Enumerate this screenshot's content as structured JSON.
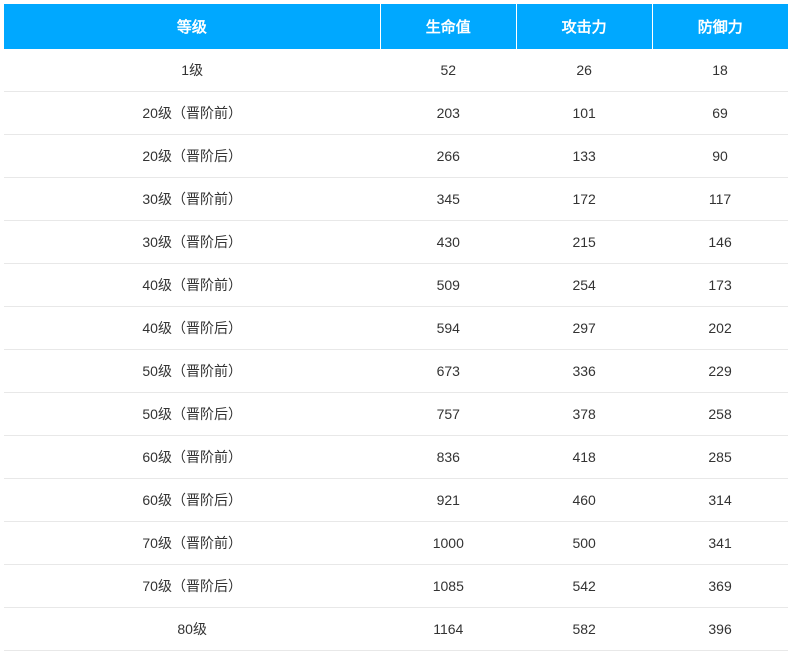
{
  "table": {
    "headers": {
      "level": "等级",
      "hp": "生命值",
      "atk": "攻击力",
      "def": "防御力"
    },
    "rows": [
      {
        "level": "1级",
        "hp": "52",
        "atk": "26",
        "def": "18"
      },
      {
        "level": "20级（晋阶前）",
        "hp": "203",
        "atk": "101",
        "def": "69"
      },
      {
        "level": "20级（晋阶后）",
        "hp": "266",
        "atk": "133",
        "def": "90"
      },
      {
        "level": "30级（晋阶前）",
        "hp": "345",
        "atk": "172",
        "def": "117"
      },
      {
        "level": "30级（晋阶后）",
        "hp": "430",
        "atk": "215",
        "def": "146"
      },
      {
        "level": "40级（晋阶前）",
        "hp": "509",
        "atk": "254",
        "def": "173"
      },
      {
        "level": "40级（晋阶后）",
        "hp": "594",
        "atk": "297",
        "def": "202"
      },
      {
        "level": "50级（晋阶前）",
        "hp": "673",
        "atk": "336",
        "def": "229"
      },
      {
        "level": "50级（晋阶后）",
        "hp": "757",
        "atk": "378",
        "def": "258"
      },
      {
        "level": "60级（晋阶前）",
        "hp": "836",
        "atk": "418",
        "def": "285"
      },
      {
        "level": "60级（晋阶后）",
        "hp": "921",
        "atk": "460",
        "def": "314"
      },
      {
        "level": "70级（晋阶前）",
        "hp": "1000",
        "atk": "500",
        "def": "341"
      },
      {
        "level": "70级（晋阶后）",
        "hp": "1085",
        "atk": "542",
        "def": "369"
      },
      {
        "level": "80级",
        "hp": "1164",
        "atk": "582",
        "def": "396"
      }
    ],
    "style": {
      "header_bg": "#00a8ff",
      "header_color": "#ffffff",
      "cell_color": "#333333",
      "border_color": "#e8e8e8",
      "background": "#ffffff",
      "header_fontsize": 15,
      "cell_fontsize": 14
    }
  }
}
